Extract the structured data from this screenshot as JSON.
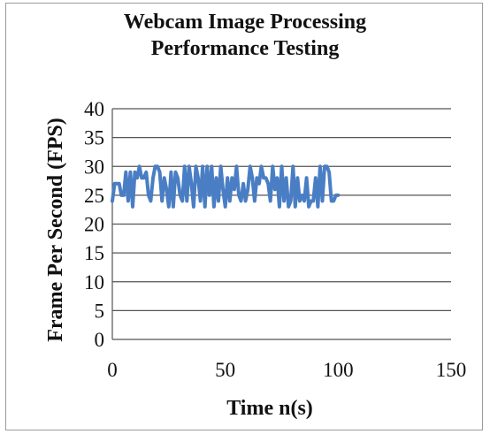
{
  "chart_data": {
    "type": "line",
    "title_line1": "Webcam Image Processing",
    "title_line2": "Performance Testing",
    "xlabel": "Time n(s)",
    "ylabel": "Frame Per Second (FPS)",
    "xlim": [
      0,
      150
    ],
    "ylim": [
      0,
      40
    ],
    "x_ticks": [
      "0",
      "50",
      "100",
      "150"
    ],
    "y_ticks": [
      "0",
      "5",
      "10",
      "15",
      "20",
      "25",
      "30",
      "35",
      "40"
    ],
    "grid": "horizontal",
    "legend": "none",
    "series_color": "#4a7ec4",
    "series": [
      {
        "x": [
          0,
          1,
          2,
          3,
          4,
          5,
          6,
          7,
          8,
          9,
          10,
          11,
          12,
          13,
          14,
          15,
          16,
          17,
          18,
          19,
          20,
          21,
          22,
          23,
          24,
          25,
          26,
          27,
          28,
          29,
          30,
          31,
          32,
          33,
          34,
          35,
          36,
          37,
          38,
          39,
          40,
          41,
          42,
          43,
          44,
          45,
          46,
          47,
          48,
          49,
          50,
          51,
          52,
          53,
          54,
          55,
          56,
          57,
          58,
          59,
          60,
          61,
          62,
          63,
          64,
          65,
          66,
          67,
          68,
          69,
          70,
          71,
          72,
          73,
          74,
          75,
          76,
          77,
          78,
          79,
          80,
          81,
          82,
          83,
          84,
          85,
          86,
          87,
          88,
          89,
          90,
          91,
          92,
          93,
          94,
          95,
          96,
          97,
          98,
          99,
          100
        ],
        "y": [
          24,
          27,
          27,
          27,
          25,
          25,
          29,
          24,
          29,
          23,
          29,
          28,
          30,
          28,
          28,
          29,
          25,
          24,
          28,
          30,
          30,
          29,
          24,
          28,
          26,
          23,
          29,
          23,
          29,
          28,
          25,
          24,
          30,
          24,
          30,
          27,
          23,
          30,
          28,
          24,
          30,
          23,
          30,
          25,
          30,
          23,
          28,
          24,
          30,
          26,
          23,
          28,
          24,
          28,
          26,
          30,
          25,
          24,
          27,
          24,
          26,
          30,
          28,
          24,
          28,
          27,
          30,
          28,
          28,
          27,
          24,
          30,
          26,
          28,
          23,
          30,
          24,
          28,
          23,
          24,
          30,
          23,
          28,
          24,
          25,
          24,
          28,
          23,
          24,
          24,
          28,
          23,
          30,
          24,
          30,
          30,
          29,
          24,
          24,
          25,
          25
        ]
      }
    ]
  }
}
